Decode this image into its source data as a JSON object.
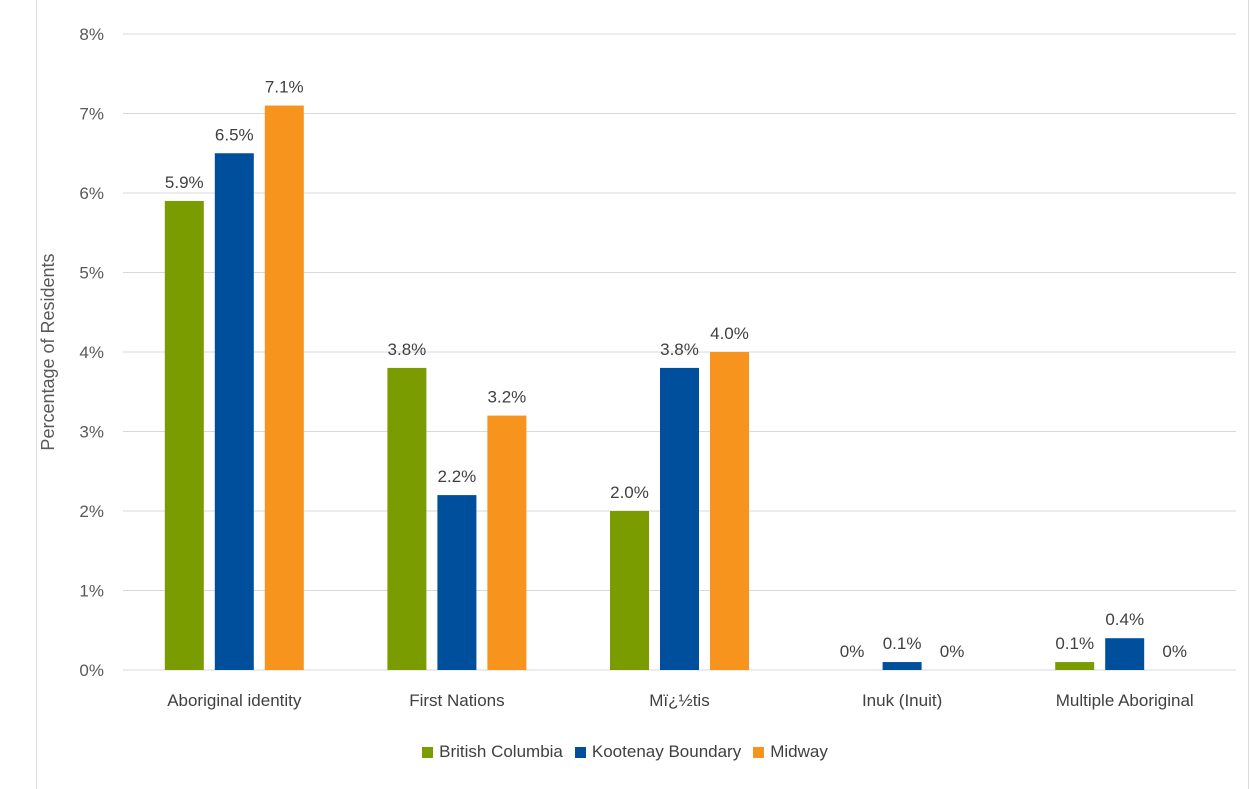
{
  "chart_data": {
    "type": "bar",
    "title": "",
    "xlabel": "",
    "ylabel": "Percentage of Residents",
    "ylim": [
      0,
      8
    ],
    "yticks": [
      "0%",
      "1%",
      "2%",
      "3%",
      "4%",
      "5%",
      "6%",
      "7%",
      "8%"
    ],
    "categories": [
      "Aboriginal identity",
      "First Nations",
      "Mï¿½tis",
      "Inuk (Inuit)",
      "Multiple Aboriginal"
    ],
    "series": [
      {
        "name": "British Columbia",
        "color": "#7a9c00",
        "values": [
          5.9,
          3.8,
          2.0,
          0,
          0.1
        ],
        "labels": [
          "5.9%",
          "3.8%",
          "2.0%",
          "0%",
          "0.1%"
        ]
      },
      {
        "name": "Kootenay Boundary",
        "color": "#004f9c",
        "values": [
          6.5,
          2.2,
          3.8,
          0.1,
          0.4
        ],
        "labels": [
          "6.5%",
          "2.2%",
          "3.8%",
          "0.1%",
          "0.4%"
        ]
      },
      {
        "name": "Midway",
        "color": "#f7941d",
        "values": [
          7.1,
          3.2,
          4.0,
          0,
          0
        ],
        "labels": [
          "7.1%",
          "3.2%",
          "4.0%",
          "0%",
          "0%"
        ]
      }
    ],
    "grid": true,
    "legend_position": "bottom"
  }
}
